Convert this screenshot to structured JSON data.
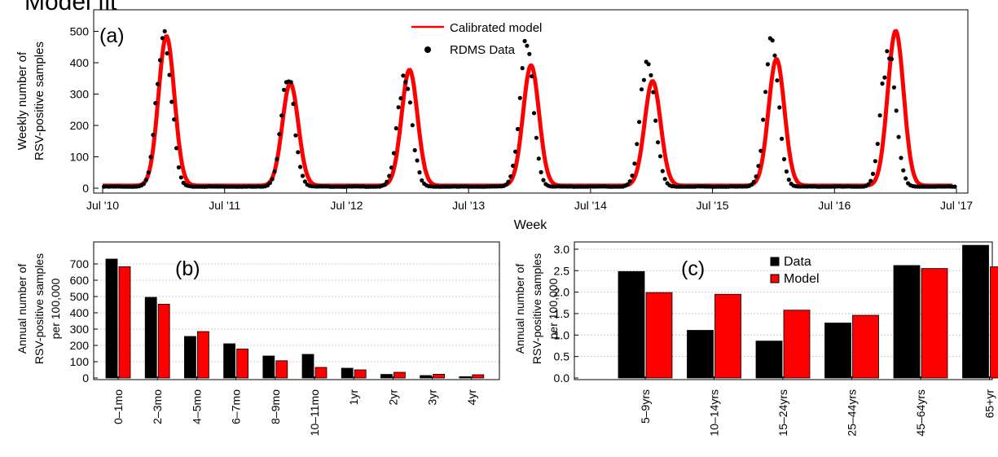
{
  "title": "Model fit",
  "colors": {
    "data": "#000000",
    "model": "#ff0000"
  },
  "panel_a": {
    "label": "(a)",
    "ylabel_line1": "Weekly number of",
    "ylabel_line2": "RSV-positive samples",
    "xlabel": "Week"
  },
  "panel_b": {
    "label": "(b)",
    "ylabel_line1": "Annual number of",
    "ylabel_line2": "RSV-positive samples",
    "ylabel_line3": "per 100,000"
  },
  "panel_c": {
    "label": "(c)",
    "ylabel_line1": "Annual number of",
    "ylabel_line2": "RSV-positive samples",
    "ylabel_line3": "per 100,000"
  },
  "chart_data": [
    {
      "type": "line",
      "panel": "(a)",
      "xlabel": "Week",
      "ylabel": "Weekly number of RSV-positive samples",
      "x_ticks": [
        "Jul '10",
        "Jul '11",
        "Jul '12",
        "Jul '13",
        "Jul '14",
        "Jul '15",
        "Jul '16",
        "Jul '17"
      ],
      "ylim": [
        0,
        560
      ],
      "y_ticks": [
        0,
        100,
        200,
        300,
        400,
        500
      ],
      "legend": [
        "Calibrated model",
        "RDMS Data"
      ],
      "legend_position": "top-center",
      "series": [
        {
          "name": "Calibrated model",
          "style": "line",
          "peaks": [
            {
              "date": "2011-01-08",
              "value": 485
            },
            {
              "date": "2012-01-14",
              "value": 335
            },
            {
              "date": "2013-01-05",
              "value": 378
            },
            {
              "date": "2014-01-04",
              "value": 392
            },
            {
              "date": "2015-01-03",
              "value": 342
            },
            {
              "date": "2016-01-09",
              "value": 412
            },
            {
              "date": "2016-12-31",
              "value": 502
            }
          ],
          "baseline": 8
        },
        {
          "name": "RDMS Data",
          "style": "points",
          "peaks": [
            {
              "date": "2011-01-01",
              "value": 535
            },
            {
              "date": "2012-01-07",
              "value": 340
            },
            {
              "date": "2012-12-22",
              "value": 372
            },
            {
              "date": "2013-12-21",
              "value": 432
            },
            {
              "date": "2014-12-20",
              "value": 428
            },
            {
              "date": "2015-12-26",
              "value": 445
            },
            {
              "date": "2016-12-10",
              "value": 452
            }
          ],
          "baseline": 5
        }
      ]
    },
    {
      "type": "bar",
      "panel": "(b)",
      "ylabel": "Annual number of RSV-positive samples per 100,000",
      "categories": [
        "0–1mo",
        "2–3mo",
        "4–5mo",
        "6–7mo",
        "8–9mo",
        "10–11mo",
        "1yr",
        "2yr",
        "3yr",
        "4yr"
      ],
      "ylim": [
        0,
        750
      ],
      "y_ticks": [
        0,
        100,
        200,
        300,
        400,
        500,
        600,
        700
      ],
      "grid": true,
      "series": [
        {
          "name": "Data",
          "values": [
            730,
            495,
            255,
            210,
            135,
            145,
            60,
            22,
            15,
            8
          ]
        },
        {
          "name": "Model",
          "values": [
            683,
            453,
            285,
            178,
            106,
            65,
            50,
            35,
            23,
            20
          ]
        }
      ]
    },
    {
      "type": "bar",
      "panel": "(c)",
      "ylabel": "Annual number of RSV-positive samples per 100,000",
      "categories": [
        "5–9yrs",
        "10–14yrs",
        "15–24yrs",
        "25–44yrs",
        "45–64yrs",
        "65+yr"
      ],
      "ylim": [
        0,
        3.2
      ],
      "y_ticks": [
        "0.0",
        "0.5",
        "1.0",
        "1.5",
        "2.0",
        "2.5",
        "3.0"
      ],
      "grid": true,
      "legend": [
        "Data",
        "Model"
      ],
      "legend_position": "top-center",
      "series": [
        {
          "name": "Data",
          "values": [
            2.48,
            1.11,
            0.86,
            1.28,
            2.62,
            3.09
          ]
        },
        {
          "name": "Model",
          "values": [
            1.99,
            1.95,
            1.58,
            1.46,
            2.55,
            2.59
          ]
        }
      ]
    }
  ]
}
